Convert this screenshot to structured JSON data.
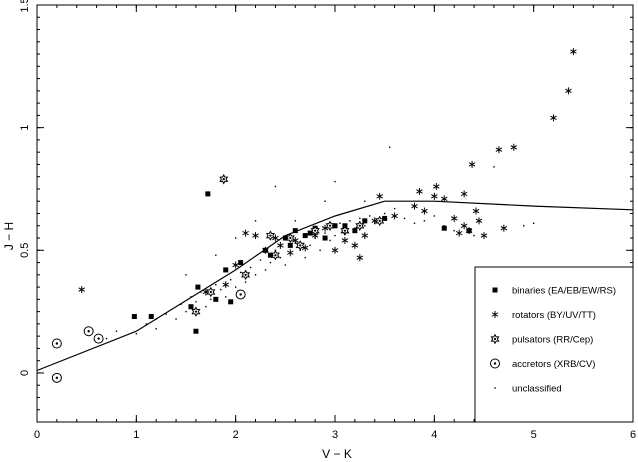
{
  "chart_data": {
    "type": "scatter",
    "xlabel": "V − K",
    "ylabel": "J − H",
    "xlim": [
      0,
      6
    ],
    "ylim": [
      -0.2,
      1.5
    ],
    "x_ticks": [
      0,
      1,
      2,
      3,
      4,
      5,
      6
    ],
    "y_ticks": [
      0,
      0.5,
      1,
      1.5
    ],
    "x_tick_labels": [
      "0",
      "1",
      "2",
      "3",
      "4",
      "5",
      "6"
    ],
    "y_tick_labels": [
      "0",
      "0.5",
      "1",
      "1.5"
    ],
    "legend_position": "bottom-right",
    "line": {
      "points": [
        [
          0.0,
          0.01
        ],
        [
          1.0,
          0.17
        ],
        [
          2.0,
          0.42
        ],
        [
          2.5,
          0.56
        ],
        [
          3.0,
          0.64
        ],
        [
          3.5,
          0.7
        ],
        [
          4.0,
          0.7
        ],
        [
          5.0,
          0.68
        ],
        [
          6.0,
          0.665
        ]
      ]
    },
    "series": [
      {
        "name": "binaries (EA/EB/EW/RS)",
        "marker": "square",
        "points": [
          [
            0.98,
            0.23
          ],
          [
            1.15,
            0.23
          ],
          [
            1.55,
            0.27
          ],
          [
            1.62,
            0.35
          ],
          [
            1.8,
            0.3
          ],
          [
            1.72,
            0.73
          ],
          [
            1.6,
            0.17
          ],
          [
            1.9,
            0.42
          ],
          [
            1.95,
            0.29
          ],
          [
            2.05,
            0.45
          ],
          [
            2.3,
            0.5
          ],
          [
            2.35,
            0.48
          ],
          [
            2.5,
            0.55
          ],
          [
            2.55,
            0.52
          ],
          [
            2.6,
            0.58
          ],
          [
            2.7,
            0.56
          ],
          [
            2.75,
            0.57
          ],
          [
            2.8,
            0.59
          ],
          [
            2.9,
            0.55
          ],
          [
            3.0,
            0.6
          ],
          [
            3.1,
            0.6
          ],
          [
            3.2,
            0.58
          ],
          [
            3.3,
            0.62
          ],
          [
            3.5,
            0.63
          ],
          [
            4.1,
            0.59
          ],
          [
            4.35,
            0.58
          ]
        ]
      },
      {
        "name": "rotators (BY/UV/TT)",
        "marker": "asterisk",
        "points": [
          [
            0.45,
            0.34
          ],
          [
            2.1,
            0.57
          ],
          [
            2.2,
            0.56
          ],
          [
            2.3,
            0.5
          ],
          [
            2.4,
            0.55
          ],
          [
            2.45,
            0.52
          ],
          [
            2.55,
            0.49
          ],
          [
            2.6,
            0.54
          ],
          [
            2.7,
            0.51
          ],
          [
            2.8,
            0.56
          ],
          [
            2.9,
            0.59
          ],
          [
            3.0,
            0.5
          ],
          [
            3.1,
            0.54
          ],
          [
            3.2,
            0.52
          ],
          [
            3.25,
            0.47
          ],
          [
            3.3,
            0.56
          ],
          [
            3.4,
            0.62
          ],
          [
            3.45,
            0.72
          ],
          [
            3.6,
            0.64
          ],
          [
            3.8,
            0.68
          ],
          [
            3.85,
            0.74
          ],
          [
            3.9,
            0.66
          ],
          [
            4.0,
            0.72
          ],
          [
            4.02,
            0.76
          ],
          [
            4.1,
            0.71
          ],
          [
            4.2,
            0.63
          ],
          [
            4.25,
            0.57
          ],
          [
            4.3,
            0.6
          ],
          [
            4.3,
            0.73
          ],
          [
            4.35,
            0.58
          ],
          [
            4.38,
            0.85
          ],
          [
            4.42,
            0.66
          ],
          [
            4.45,
            0.62
          ],
          [
            4.5,
            0.56
          ],
          [
            4.65,
            0.91
          ],
          [
            4.7,
            0.59
          ],
          [
            4.8,
            0.92
          ],
          [
            5.2,
            1.04
          ],
          [
            5.35,
            1.15
          ],
          [
            5.4,
            1.31
          ],
          [
            1.7,
            0.33
          ],
          [
            1.9,
            0.36
          ],
          [
            2.0,
            0.44
          ]
        ]
      },
      {
        "name": "pulsators (RR/Cep)",
        "marker": "star",
        "points": [
          [
            1.88,
            0.79
          ],
          [
            1.6,
            0.25
          ],
          [
            1.75,
            0.33
          ],
          [
            2.1,
            0.4
          ],
          [
            2.35,
            0.56
          ],
          [
            2.4,
            0.48
          ],
          [
            2.55,
            0.55
          ],
          [
            2.65,
            0.52
          ],
          [
            2.8,
            0.58
          ],
          [
            2.95,
            0.6
          ],
          [
            3.1,
            0.58
          ],
          [
            3.25,
            0.6
          ],
          [
            3.45,
            0.62
          ]
        ]
      },
      {
        "name": "accretors (XRB/CV)",
        "marker": "circle-dot",
        "points": [
          [
            0.2,
            -0.02
          ],
          [
            0.2,
            0.12
          ],
          [
            0.52,
            0.17
          ],
          [
            0.62,
            0.14
          ],
          [
            2.05,
            0.32
          ]
        ]
      },
      {
        "name": "unclassified",
        "marker": "dot",
        "points": [
          [
            0.8,
            0.17
          ],
          [
            1.1,
            0.2
          ],
          [
            1.2,
            0.18
          ],
          [
            1.3,
            0.24
          ],
          [
            1.4,
            0.22
          ],
          [
            1.45,
            0.28
          ],
          [
            1.5,
            0.25
          ],
          [
            1.55,
            0.31
          ],
          [
            1.6,
            0.29
          ],
          [
            1.65,
            0.33
          ],
          [
            1.7,
            0.27
          ],
          [
            1.75,
            0.3
          ],
          [
            1.8,
            0.36
          ],
          [
            1.85,
            0.34
          ],
          [
            1.9,
            0.31
          ],
          [
            1.95,
            0.38
          ],
          [
            2.0,
            0.35
          ],
          [
            2.05,
            0.41
          ],
          [
            2.1,
            0.37
          ],
          [
            2.15,
            0.43
          ],
          [
            2.2,
            0.4
          ],
          [
            2.25,
            0.46
          ],
          [
            2.3,
            0.42
          ],
          [
            2.35,
            0.45
          ],
          [
            2.4,
            0.5
          ],
          [
            2.45,
            0.47
          ],
          [
            2.5,
            0.44
          ],
          [
            2.55,
            0.49
          ],
          [
            2.6,
            0.53
          ],
          [
            2.65,
            0.5
          ],
          [
            2.7,
            0.47
          ],
          [
            2.75,
            0.52
          ],
          [
            2.8,
            0.55
          ],
          [
            2.85,
            0.5
          ],
          [
            2.9,
            0.57
          ],
          [
            2.95,
            0.54
          ],
          [
            3.0,
            0.56
          ],
          [
            3.05,
            0.61
          ],
          [
            3.1,
            0.57
          ],
          [
            3.15,
            0.62
          ],
          [
            3.2,
            0.59
          ],
          [
            3.25,
            0.63
          ],
          [
            3.3,
            0.6
          ],
          [
            3.35,
            0.64
          ],
          [
            3.4,
            0.61
          ],
          [
            3.5,
            0.65
          ],
          [
            3.6,
            0.67
          ],
          [
            3.7,
            0.63
          ],
          [
            3.8,
            0.61
          ],
          [
            3.9,
            0.62
          ],
          [
            4.0,
            0.64
          ],
          [
            4.1,
            0.6
          ],
          [
            4.2,
            0.58
          ],
          [
            4.4,
            0.56
          ],
          [
            4.6,
            0.84
          ],
          [
            4.9,
            0.6
          ],
          [
            5.0,
            0.61
          ],
          [
            3.0,
            0.78
          ],
          [
            2.9,
            0.7
          ],
          [
            2.0,
            0.55
          ],
          [
            1.5,
            0.4
          ],
          [
            1.8,
            0.48
          ],
          [
            2.2,
            0.62
          ],
          [
            3.55,
            0.92
          ],
          [
            2.4,
            0.76
          ],
          [
            1.2,
            0.22
          ],
          [
            0.7,
            0.14
          ],
          [
            1.0,
            0.16
          ],
          [
            2.6,
            0.62
          ],
          [
            3.3,
            0.7
          ]
        ]
      }
    ]
  }
}
